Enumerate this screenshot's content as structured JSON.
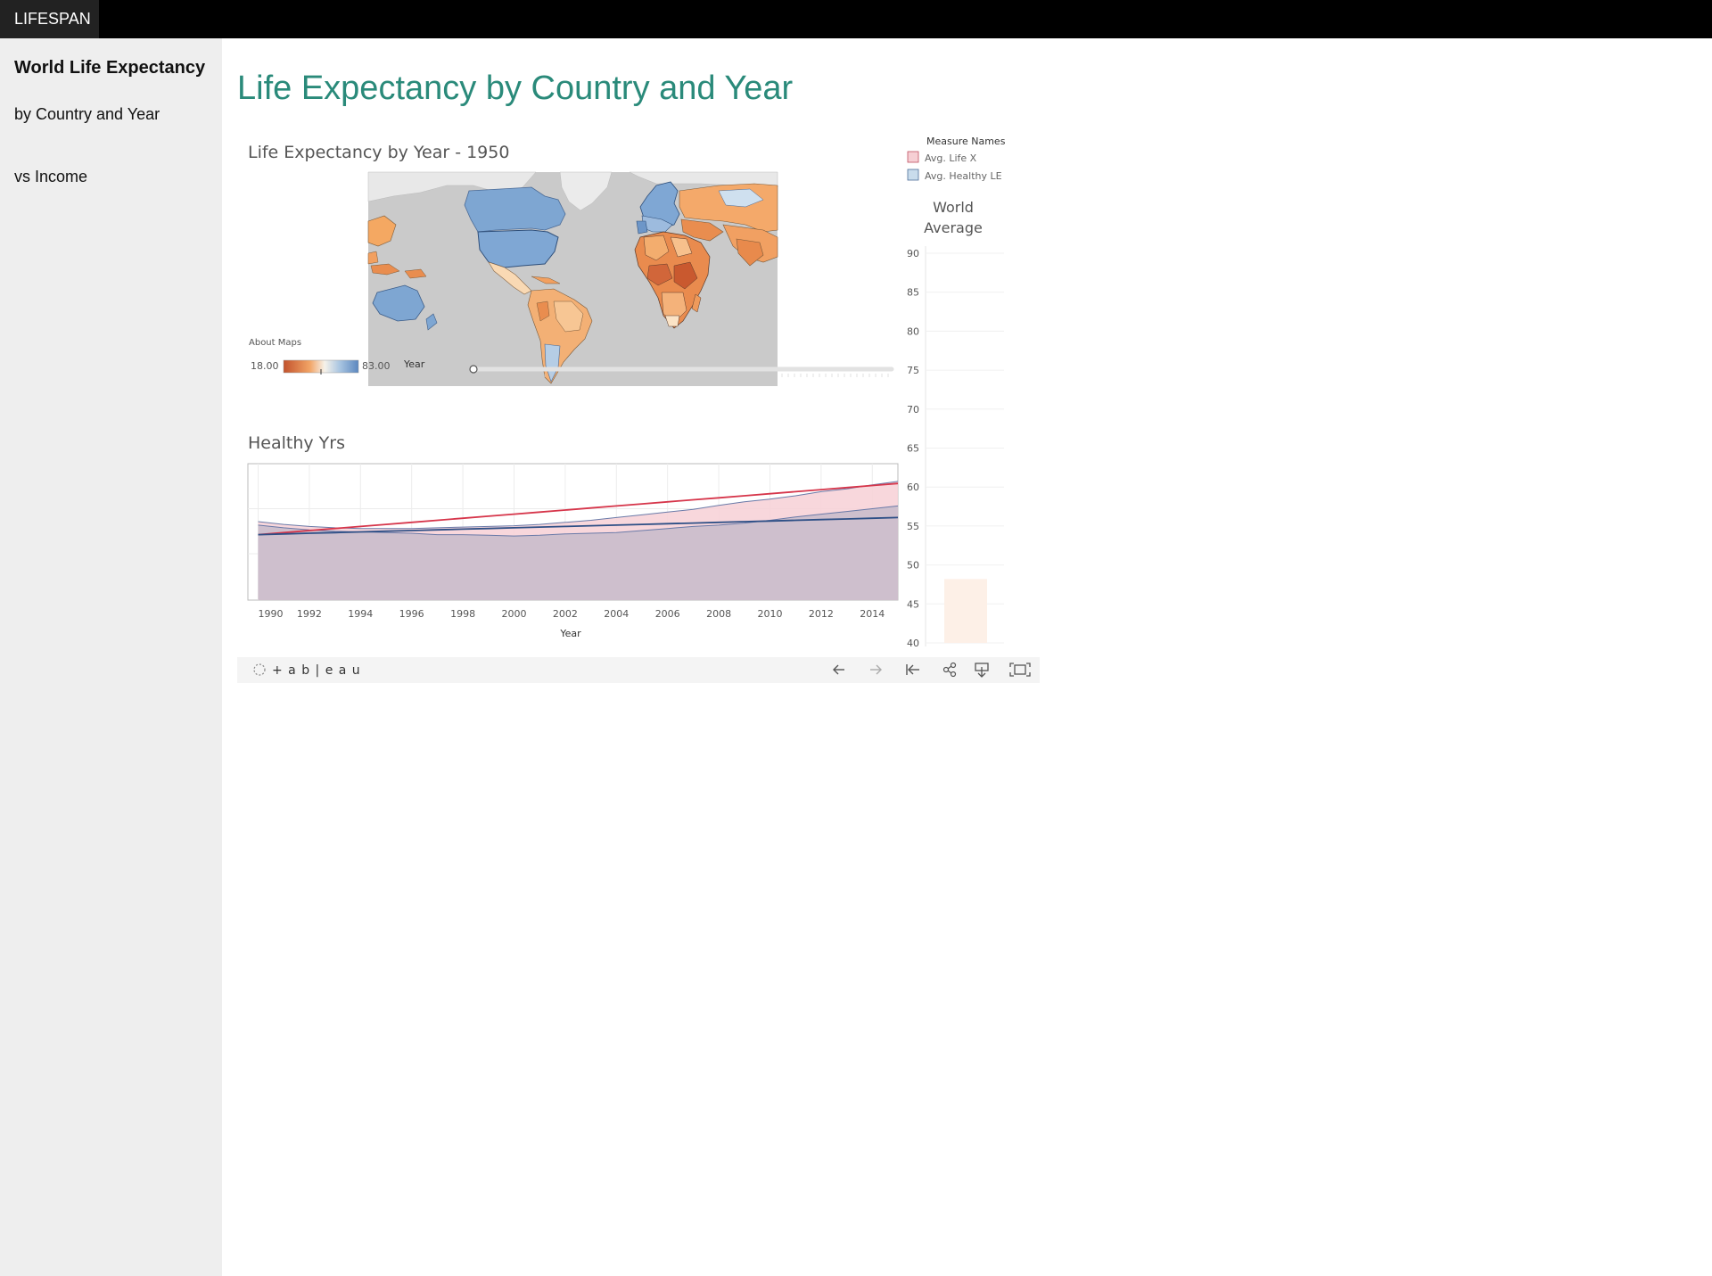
{
  "nav": {
    "brand": "LIFESPAN"
  },
  "sidebar": {
    "title": "World Life Expectancy",
    "links": [
      "by Country and Year",
      "vs Income"
    ]
  },
  "main": {
    "title": "Life Expectancy by Country and Year"
  },
  "map": {
    "title": "Life Expectancy by Year - 1950",
    "about": "About Maps",
    "scale_min": "18.00",
    "scale_max": "83.00",
    "slider_label": "Year",
    "colors": {
      "low": "#c2522c",
      "mid": "#f6f2ea",
      "high": "#5b87bf",
      "ocean": "#cacaca"
    }
  },
  "legend": {
    "title": "Measure Names",
    "items": [
      {
        "label": "Avg. Life X",
        "color": "#f6cfd4"
      },
      {
        "label": "Avg. Healthy LE",
        "color": "#c9dcec"
      }
    ]
  },
  "healthy_chart": {
    "title": "Healthy Yrs",
    "xlabel": "Year",
    "xticks": [
      "1990",
      "1992",
      "1994",
      "1996",
      "1998",
      "2000",
      "2002",
      "2004",
      "2006",
      "2008",
      "2010",
      "2012",
      "2014"
    ]
  },
  "world_avg": {
    "title_lines": [
      "World",
      "Average"
    ],
    "yticks": [
      "90",
      "85",
      "80",
      "75",
      "70",
      "65",
      "60",
      "55",
      "50",
      "45",
      "40"
    ]
  },
  "toolbar": {
    "logo": "+ a b | e a u",
    "buttons": [
      "undo-icon",
      "redo-icon",
      "revert-icon",
      "share-icon",
      "download-icon",
      "fullscreen-icon"
    ]
  },
  "chart_data": [
    {
      "type": "area",
      "title": "Healthy Yrs",
      "xlabel": "Year",
      "x": [
        1990,
        1991,
        1992,
        1993,
        1994,
        1995,
        1996,
        1997,
        1998,
        1999,
        2000,
        2001,
        2002,
        2003,
        2004,
        2005,
        2006,
        2007,
        2008,
        2009,
        2010,
        2011,
        2012,
        2013,
        2014,
        2015
      ],
      "series": [
        {
          "values": [
            49.6,
            49.9,
            50.2,
            50.5,
            50.8,
            51.1,
            51.4,
            51.7,
            52.0,
            52.3,
            52.6,
            52.9,
            53.2,
            53.5,
            53.8,
            54.1,
            54.4,
            54.7,
            55.0,
            55.3,
            55.6,
            55.9,
            56.2,
            56.5,
            56.8,
            57.1
          ]
        },
        {
          "values": [
            51.5,
            51.1,
            50.8,
            50.6,
            50.5,
            50.5,
            50.5,
            50.6,
            50.7,
            50.8,
            50.9,
            51.1,
            51.4,
            51.7,
            52.1,
            52.5,
            52.9,
            53.3,
            53.9,
            54.4,
            54.8,
            55.3,
            55.9,
            56.3,
            56.9,
            57.4
          ]
        },
        {
          "values": [
            49.6,
            49.7,
            49.8,
            49.9,
            50.0,
            50.1,
            50.2,
            50.3,
            50.4,
            50.5,
            50.6,
            50.7,
            50.8,
            50.9,
            51.0,
            51.1,
            51.2,
            51.3,
            51.4,
            51.5,
            51.6,
            51.7,
            51.8,
            51.9,
            52.0,
            52.1
          ]
        },
        {
          "values": [
            51.0,
            50.6,
            50.3,
            50.1,
            50.0,
            49.9,
            49.8,
            49.6,
            49.6,
            49.5,
            49.4,
            49.5,
            49.7,
            49.8,
            49.9,
            50.2,
            50.5,
            50.8,
            51.0,
            51.3,
            51.7,
            52.2,
            52.6,
            53.0,
            53.4,
            53.8
          ]
        }
      ]
    },
    {
      "type": "bar",
      "title": "World Average",
      "ylim": [
        40,
        90
      ],
      "values": [
        48.2
      ]
    }
  ]
}
